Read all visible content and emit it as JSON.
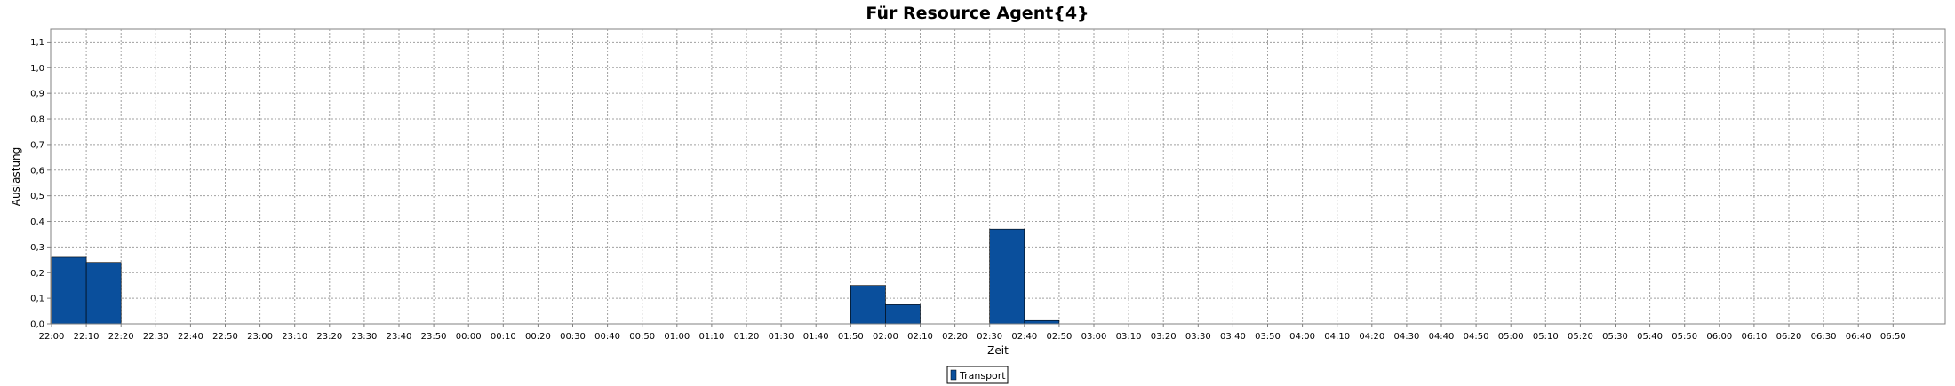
{
  "chart_data": {
    "type": "bar",
    "title": "Für Resource Agent{4}",
    "xlabel": "Zeit",
    "ylabel": "Auslastung",
    "ylim": [
      0,
      1.15
    ],
    "yticks": [
      "0,0",
      "0,1",
      "0,2",
      "0,3",
      "0,4",
      "0,5",
      "0,6",
      "0,7",
      "0,8",
      "0,9",
      "1,0",
      "1,1"
    ],
    "categories": [
      "22:00",
      "22:10",
      "22:20",
      "22:30",
      "22:40",
      "22:50",
      "23:00",
      "23:10",
      "23:20",
      "23:30",
      "23:40",
      "23:50",
      "00:00",
      "00:10",
      "00:20",
      "00:30",
      "00:40",
      "00:50",
      "01:00",
      "01:10",
      "01:20",
      "01:30",
      "01:40",
      "01:50",
      "02:00",
      "02:10",
      "02:20",
      "02:30",
      "02:40",
      "02:50",
      "03:00",
      "03:10",
      "03:20",
      "03:30",
      "03:40",
      "03:50",
      "04:00",
      "04:10",
      "04:20",
      "04:30",
      "04:40",
      "04:50",
      "05:00",
      "05:10",
      "05:20",
      "05:30",
      "05:40",
      "05:50",
      "06:00",
      "06:10",
      "06:20",
      "06:30",
      "06:40",
      "06:50"
    ],
    "series": [
      {
        "name": "Transport",
        "color": "#0a4f9c",
        "values": [
          0.26,
          0.24,
          0,
          0,
          0,
          0,
          0,
          0,
          0,
          0,
          0,
          0,
          0,
          0,
          0,
          0,
          0,
          0,
          0,
          0,
          0,
          0,
          0,
          0.15,
          0.075,
          0,
          0,
          0.37,
          0.013,
          0,
          0,
          0,
          0,
          0,
          0,
          0,
          0,
          0,
          0,
          0,
          0,
          0,
          0,
          0,
          0,
          0,
          0,
          0,
          0,
          0,
          0,
          0,
          0,
          0
        ]
      }
    ],
    "grid": true,
    "legend": "bottom-center"
  }
}
